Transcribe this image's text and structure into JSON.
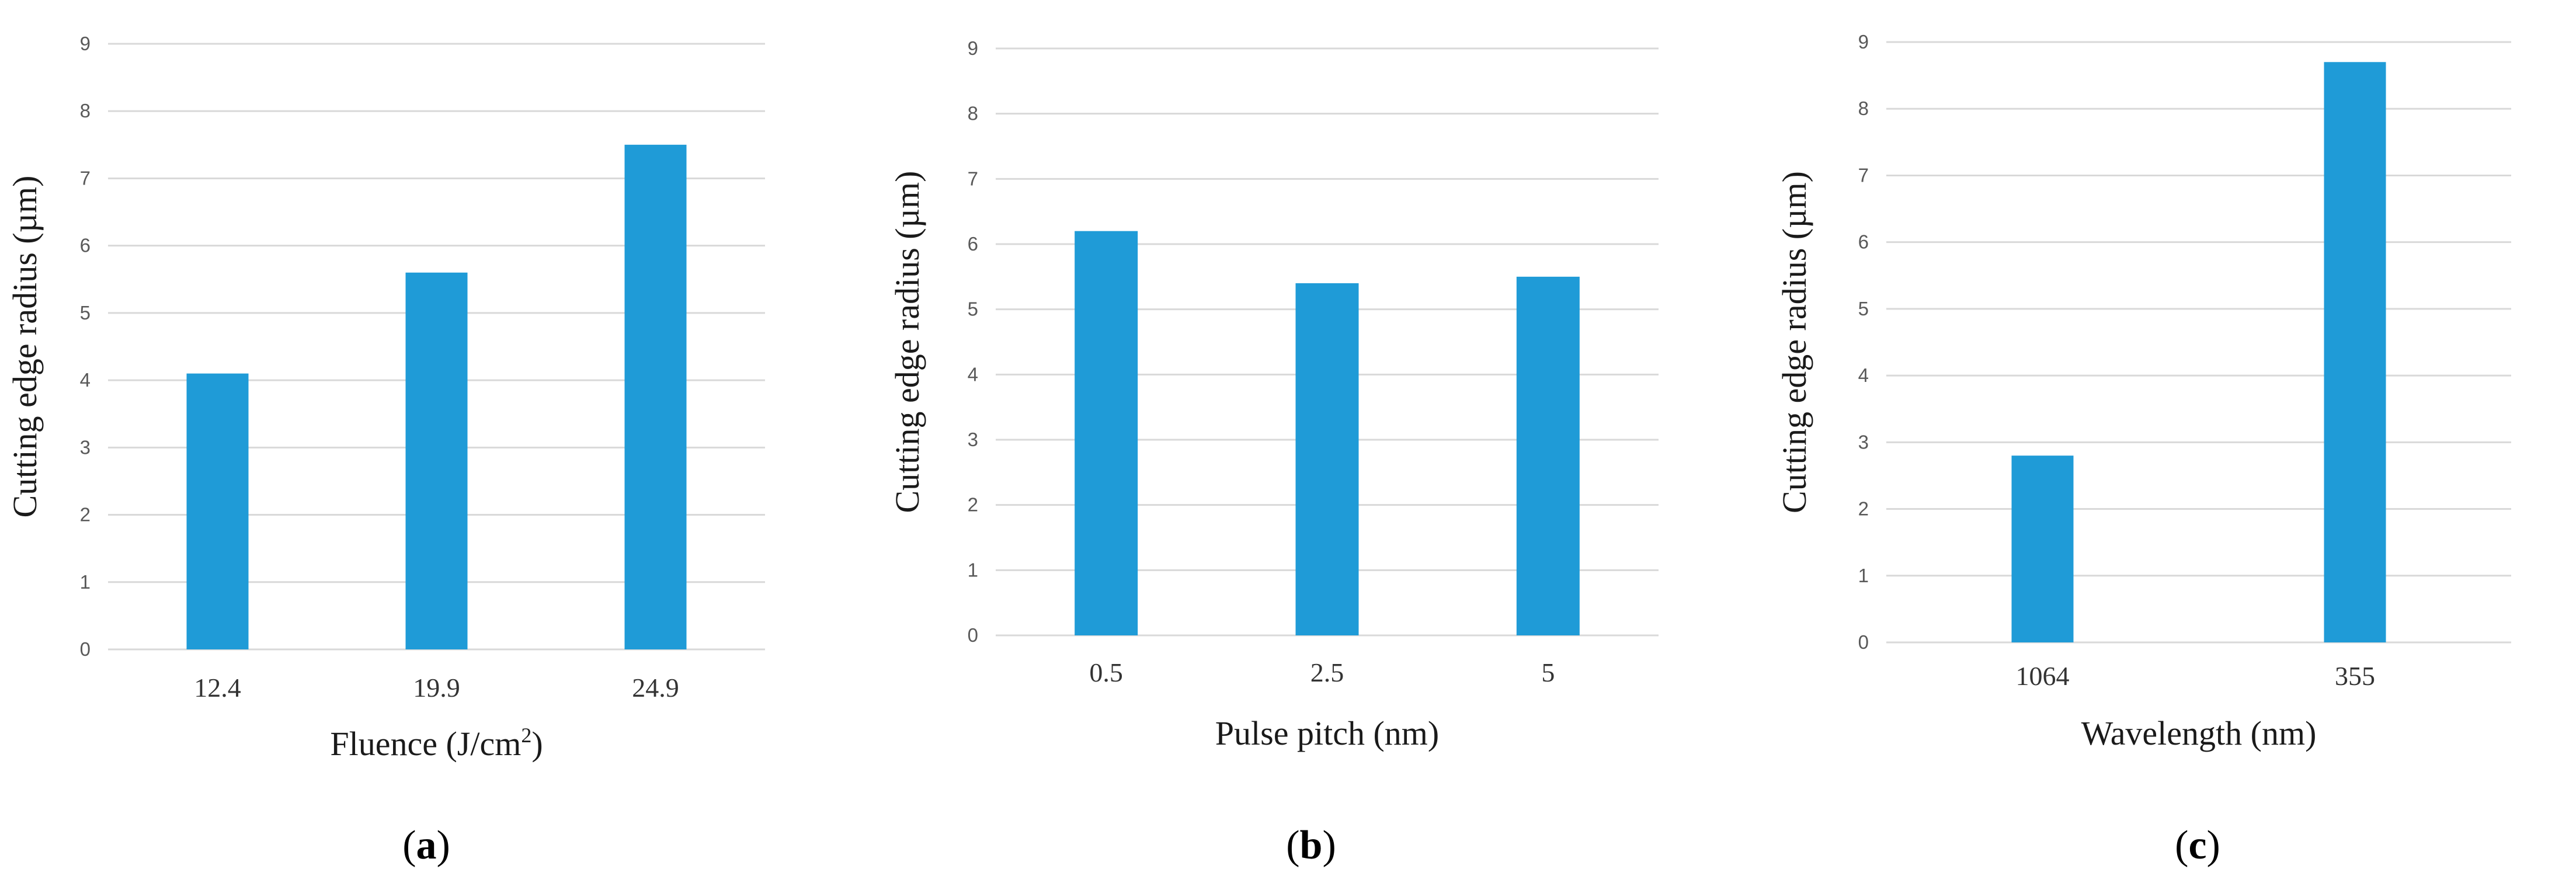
{
  "panels": [
    {
      "caption_letter": "a",
      "chart_data": {
        "type": "bar",
        "categories": [
          "12.4",
          "19.9",
          "24.9"
        ],
        "values": [
          4.1,
          5.6,
          7.5
        ],
        "xlabel": "Fluence (J/cm",
        "xlabel_sup": "2",
        "xlabel_end": ")",
        "ylabel": "Cutting edge radius (µm)",
        "ylim": [
          0,
          9
        ],
        "yticks": [
          "0",
          "1",
          "2",
          "3",
          "4",
          "5",
          "6",
          "7",
          "8",
          "9"
        ],
        "grid": true,
        "bar_color": "#1f9bd7"
      }
    },
    {
      "caption_letter": "b",
      "chart_data": {
        "type": "bar",
        "categories": [
          "0.5",
          "2.5",
          "5"
        ],
        "values": [
          6.2,
          5.4,
          5.5
        ],
        "xlabel": "Pulse pitch (nm)",
        "ylabel": "Cutting edge radius (µm)",
        "ylim": [
          0,
          9
        ],
        "yticks": [
          "0",
          "1",
          "2",
          "3",
          "4",
          "5",
          "6",
          "7",
          "8",
          "9"
        ],
        "grid": true,
        "bar_color": "#1f9bd7"
      }
    },
    {
      "caption_letter": "c",
      "chart_data": {
        "type": "bar",
        "categories": [
          "1064",
          "355"
        ],
        "values": [
          2.8,
          8.7
        ],
        "xlabel": "Wavelength (nm)",
        "ylabel": "Cutting edge radius (µm)",
        "ylim": [
          0,
          9
        ],
        "yticks": [
          "0",
          "1",
          "2",
          "3",
          "4",
          "5",
          "6",
          "7",
          "8",
          "9"
        ],
        "grid": true,
        "bar_color": "#1f9bd7"
      }
    }
  ]
}
